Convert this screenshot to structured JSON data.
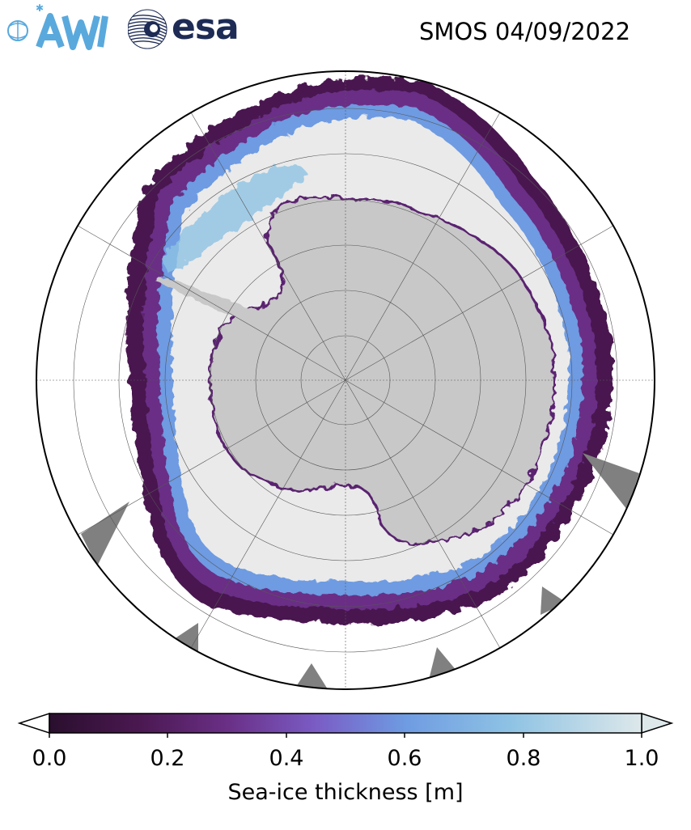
{
  "header": {
    "awi_logo_text": "AWI",
    "esa_logo_text": "esa",
    "title": "SMOS 04/09/2022"
  },
  "map": {
    "projection": "south-polar-stereographic",
    "land_color": "#c8c8c8",
    "no_data_color": "#808080",
    "high_thickness_color": "#eaeaea"
  },
  "colorbar": {
    "label": "Sea-ice thickness [m]",
    "min": 0.0,
    "max": 1.0,
    "extend": "both",
    "ticks": [
      "0.0",
      "0.2",
      "0.4",
      "0.6",
      "0.8",
      "1.0"
    ],
    "colors": [
      "#2a0f2e",
      "#4f1856",
      "#6d2f85",
      "#7a64c9",
      "#6e9be2",
      "#8fc3e4",
      "#dde8ea"
    ]
  }
}
